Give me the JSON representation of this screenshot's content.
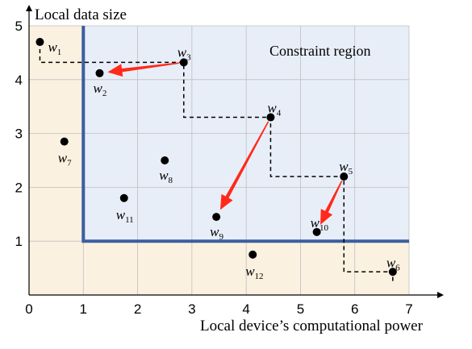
{
  "figure": {
    "y_axis_title": "Local data size",
    "x_axis_title": "Local device’s computational power",
    "region_label": "Constraint region",
    "x_ticks": [
      "0",
      "1",
      "2",
      "3",
      "4",
      "5",
      "6",
      "7"
    ],
    "y_ticks": [
      "1",
      "2",
      "3",
      "4",
      "5"
    ],
    "xlim": [
      0,
      7
    ],
    "ylim": [
      0,
      5
    ],
    "constraint_corner": {
      "x": 1.0,
      "y": 1.0
    },
    "colors": {
      "inside_region": "#e8eef8",
      "outside_region": "#fbf1e0",
      "constraint_line": "#3b5ea0",
      "arrow": "#ff2a1a",
      "grid": "#bfbfbf",
      "point": "#000000"
    }
  },
  "points": [
    {
      "id": "w1",
      "base": "w",
      "sub": "1",
      "x": 0.2,
      "y": 4.7
    },
    {
      "id": "w2",
      "base": "w",
      "sub": "2",
      "x": 1.3,
      "y": 4.12
    },
    {
      "id": "w3",
      "base": "w",
      "sub": "3",
      "x": 2.85,
      "y": 4.32
    },
    {
      "id": "w4",
      "base": "w",
      "sub": "4",
      "x": 4.45,
      "y": 3.3
    },
    {
      "id": "w5",
      "base": "w",
      "sub": "5",
      "x": 5.8,
      "y": 2.2
    },
    {
      "id": "w6",
      "base": "w",
      "sub": "6",
      "x": 6.7,
      "y": 0.43
    },
    {
      "id": "w7",
      "base": "w",
      "sub": "7",
      "x": 0.65,
      "y": 2.85
    },
    {
      "id": "w8",
      "base": "w",
      "sub": "8",
      "x": 2.5,
      "y": 2.5
    },
    {
      "id": "w9",
      "base": "w",
      "sub": "9",
      "x": 3.45,
      "y": 1.45
    },
    {
      "id": "w10",
      "base": "w",
      "sub": "10",
      "x": 5.3,
      "y": 1.17
    },
    {
      "id": "w11",
      "base": "w",
      "sub": "11",
      "x": 1.75,
      "y": 1.8
    },
    {
      "id": "w12",
      "base": "w",
      "sub": "12",
      "x": 4.12,
      "y": 0.75
    }
  ],
  "staircase": [
    {
      "x": 0.2,
      "y": 4.7
    },
    {
      "x": 0.2,
      "y": 4.32
    },
    {
      "x": 2.85,
      "y": 4.32
    },
    {
      "x": 2.85,
      "y": 3.3
    },
    {
      "x": 4.45,
      "y": 3.3
    },
    {
      "x": 4.45,
      "y": 2.2
    },
    {
      "x": 5.8,
      "y": 2.2
    },
    {
      "x": 5.8,
      "y": 0.43
    },
    {
      "x": 6.7,
      "y": 0.43
    },
    {
      "x": 6.7,
      "y": 0.2
    }
  ],
  "arrows": [
    {
      "from": "w3",
      "to": "w2"
    },
    {
      "from": "w4",
      "to": "w9"
    },
    {
      "from": "w5",
      "to": "w10"
    }
  ]
}
